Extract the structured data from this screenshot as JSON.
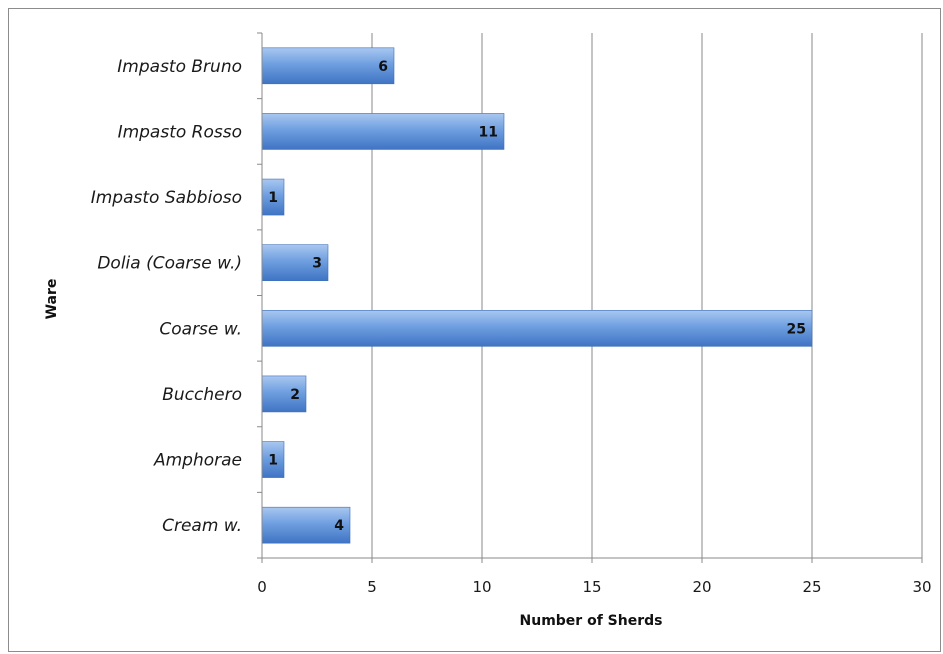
{
  "chart_data": {
    "type": "bar",
    "orientation": "horizontal",
    "categories": [
      "Impasto Bruno",
      "Impasto Rosso",
      "Impasto Sabbioso",
      "Dolia (Coarse w.)",
      "Coarse w.",
      "Bucchero",
      "Amphorae",
      "Cream w."
    ],
    "values": [
      6,
      11,
      1,
      3,
      25,
      2,
      1,
      4
    ],
    "title": "",
    "xlabel": "Number of Sherds",
    "ylabel": "Ware",
    "xlim": [
      0,
      30
    ],
    "xticks": [
      "0",
      "5",
      "10",
      "15",
      "20",
      "25",
      "30"
    ],
    "grid": "vertical",
    "data_labels": true,
    "bar_color": "#5b8fd6"
  }
}
